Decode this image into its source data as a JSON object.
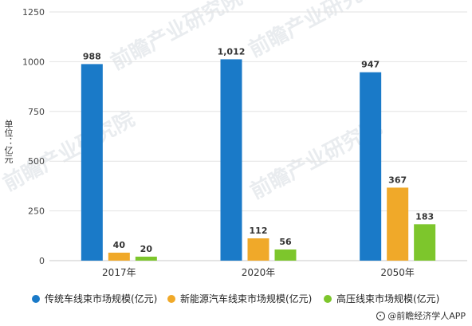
{
  "chart_data": {
    "type": "bar",
    "categories": [
      "2017年",
      "2020年",
      "2050年"
    ],
    "series": [
      {
        "name": "传统车线束市场规模(亿元)",
        "values": [
          988,
          1012,
          947
        ],
        "labels": [
          "988",
          "1,012",
          "947"
        ],
        "color": "#1a7ac8"
      },
      {
        "name": "新能源汽车线束市场规模(亿元)",
        "values": [
          40,
          112,
          367
        ],
        "labels": [
          "40",
          "112",
          "367"
        ],
        "color": "#f0a929"
      },
      {
        "name": "高压线束市场规模(亿元)",
        "values": [
          20,
          56,
          183
        ],
        "labels": [
          "20",
          "56",
          "183"
        ],
        "color": "#7dc62c"
      }
    ],
    "ylabel": "单位：亿元",
    "ylim": [
      0,
      1250
    ],
    "yticks": [
      0,
      250,
      500,
      750,
      1000,
      1250
    ],
    "ytick_labels": [
      "0",
      "250",
      "500",
      "750",
      "1000",
      "1250"
    ],
    "grid": true,
    "legend_position": "bottom"
  },
  "watermark": "前瞻产业研究院",
  "source": "@前瞻经济学人APP"
}
